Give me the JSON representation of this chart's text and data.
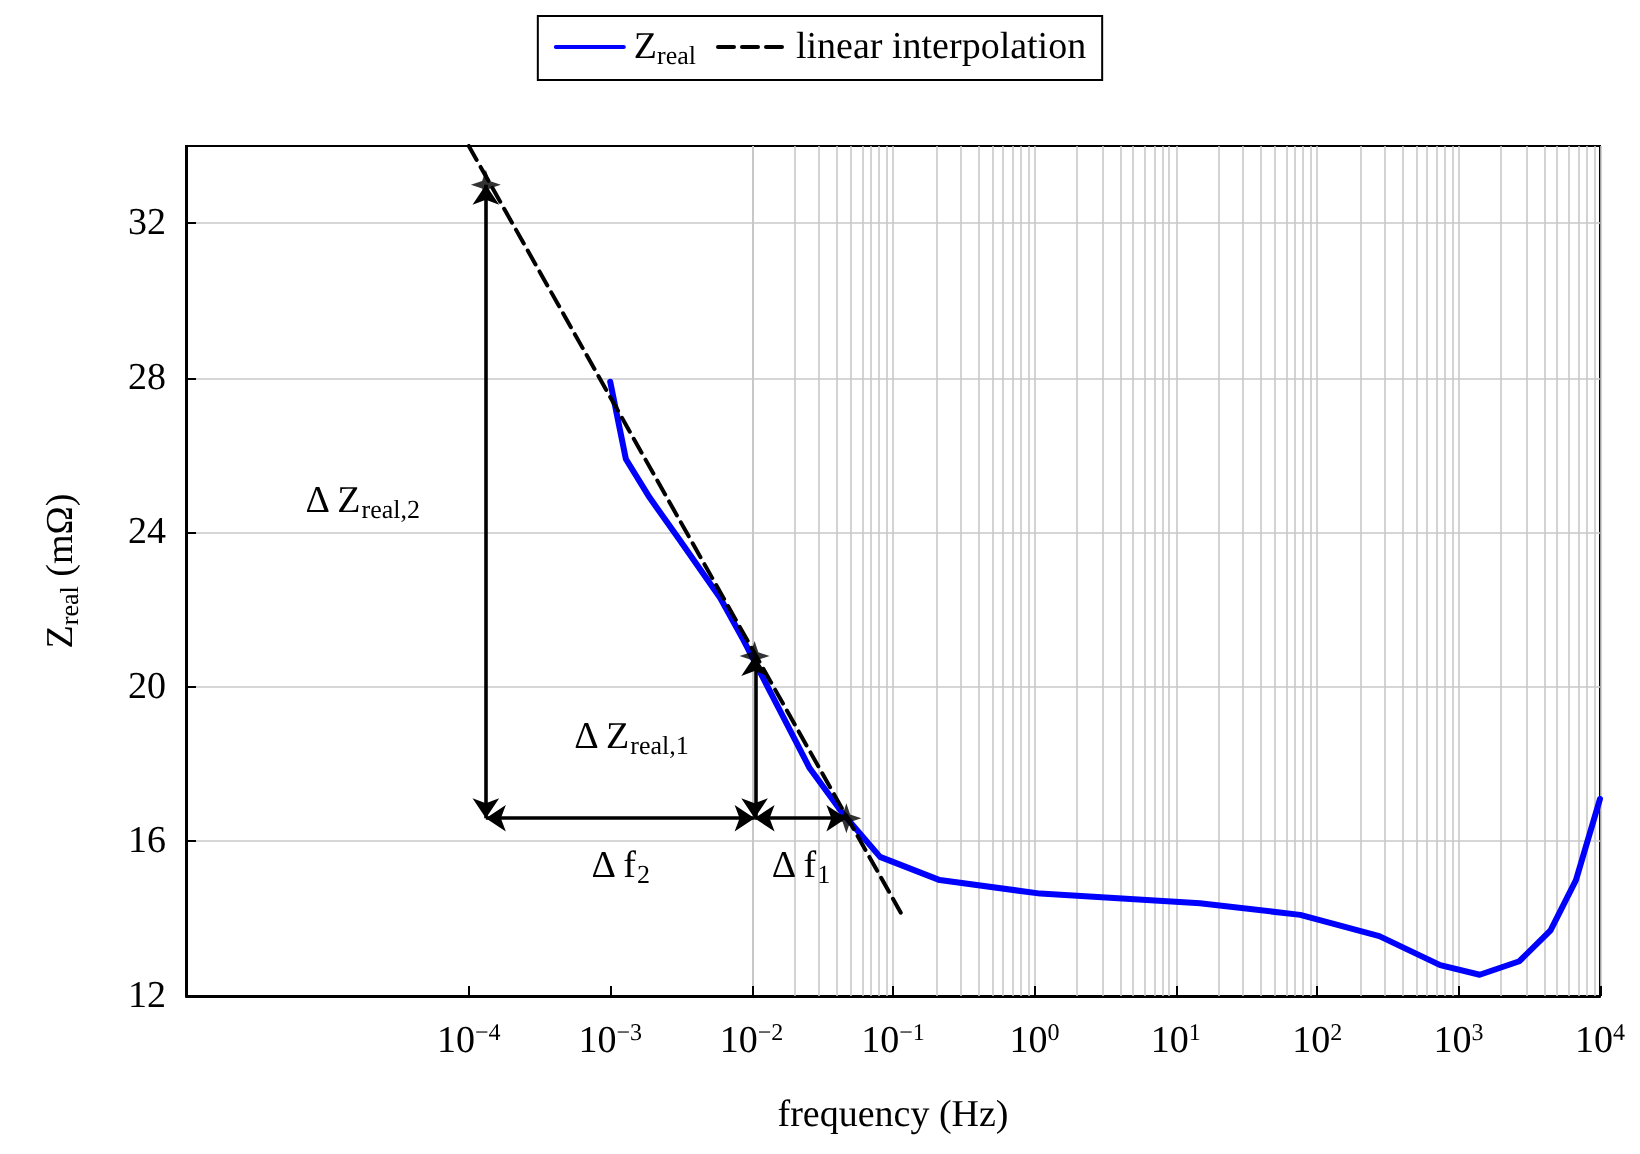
{
  "chart_data": {
    "type": "line",
    "xlabel": "frequency (Hz)",
    "ylabel": "Z$_{real}$ (mΩ)",
    "log": "x",
    "grid": true,
    "legend": "top",
    "xlim": [
      1e-06,
      10000
    ],
    "xticks": [
      {
        "value": 0.0001,
        "label": "10$^{−4}$"
      },
      {
        "value": 0.001,
        "label": "10$^{−3}$"
      },
      {
        "value": 0.01,
        "label": "10$^{−2}$"
      },
      {
        "value": 0.1,
        "label": "10$^{−1}$"
      },
      {
        "value": 1,
        "label": "10$^{0}$"
      },
      {
        "value": 10,
        "label": "10$^{1}$"
      },
      {
        "value": 100,
        "label": "10$^{2}$"
      },
      {
        "value": 1000,
        "label": "10$^{3}$"
      },
      {
        "value": 10000,
        "label": "10$^{4}$"
      }
    ],
    "ylim": [
      12,
      34
    ],
    "yticks": [
      12,
      16,
      20,
      24,
      28,
      32
    ],
    "series": [
      {
        "name": "Z$_{real}$",
        "color": "#0000ff",
        "line_style": "solid",
        "marker": "none",
        "x": [
          0.001,
          0.00129,
          0.0019,
          0.0031,
          0.006,
          0.0088,
          0.0158,
          0.0257,
          0.0447,
          0.081,
          0.214,
          1.1,
          14.8,
          75.9,
          275,
          741,
          1410,
          2690,
          4470,
          6760,
          10000
        ],
        "values": [
          27.9,
          25.9,
          24.9,
          23.8,
          22.3,
          21.2,
          19.4,
          17.9,
          16.7,
          15.6,
          15.0,
          14.65,
          14.4,
          14.1,
          13.55,
          12.8,
          12.55,
          12.9,
          13.7,
          15.0,
          17.1
        ]
      },
      {
        "name": "linear interpolation",
        "color": "#000000",
        "line_style": "dashed",
        "marker": "none",
        "x": [
          0.0001,
          0.12
        ],
        "values": [
          34.0,
          14.0
        ]
      },
      {
        "type": "scatter",
        "color": "#000000",
        "marker": "star",
        "x": [
          0.000132,
          0.0105,
          0.0468
        ],
        "values": [
          33.0,
          20.8,
          16.6
        ]
      }
    ],
    "annotations": [
      "Δ Z$_{real,2}$",
      {
        "text": "Δ Z$_{real,1}$",
        "x": 0.0105,
        "y": 20.8
      },
      "Δ f$_{2}$",
      {
        "text": "Δ f$_{1}$",
        "x": 0.0468,
        "y": 16.6
      }
    ]
  }
}
